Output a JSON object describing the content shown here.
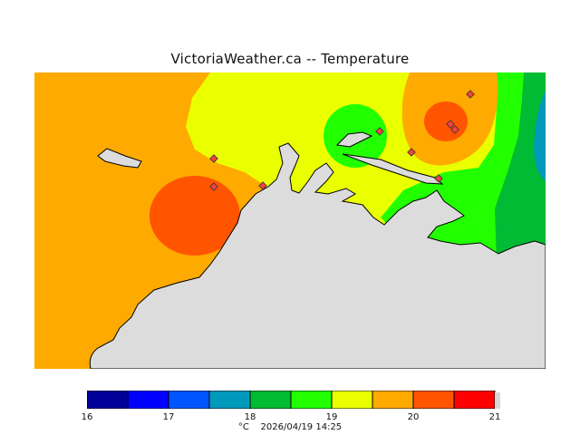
{
  "title": "VictoriaWeather.ca -- Temperature",
  "colors": {
    "land": "#dcdcdc",
    "t19_20": "#ffaa00",
    "t18_19": "#eaff00",
    "t17_18": "#22ff00",
    "t16_17": "#00bb33",
    "t15_16": "#0099bb",
    "t20_21": "#ff5500",
    "station": "#ee4444"
  },
  "legend": {
    "bins": [
      {
        "color": "#000099"
      },
      {
        "color": "#0000ff"
      },
      {
        "color": "#0055ff"
      },
      {
        "color": "#0099bb"
      },
      {
        "color": "#00bb33"
      },
      {
        "color": "#22ff00"
      },
      {
        "color": "#eaff00"
      },
      {
        "color": "#ffaa00"
      },
      {
        "color": "#ff5500"
      },
      {
        "color": "#ff0000"
      }
    ],
    "extra_color": "#d8d8d8",
    "ticks": [
      "16",
      "17",
      "18",
      "19",
      "20",
      "21"
    ],
    "unit": "°C",
    "timestamp": "2026/04/19 14:25"
  },
  "stations": [
    {
      "id": 1
    },
    {
      "id": 2
    },
    {
      "id": 3
    },
    {
      "id": 4
    },
    {
      "id": 5
    },
    {
      "id": 6
    },
    {
      "id": 7
    },
    {
      "id": 8
    },
    {
      "id": 9
    }
  ]
}
